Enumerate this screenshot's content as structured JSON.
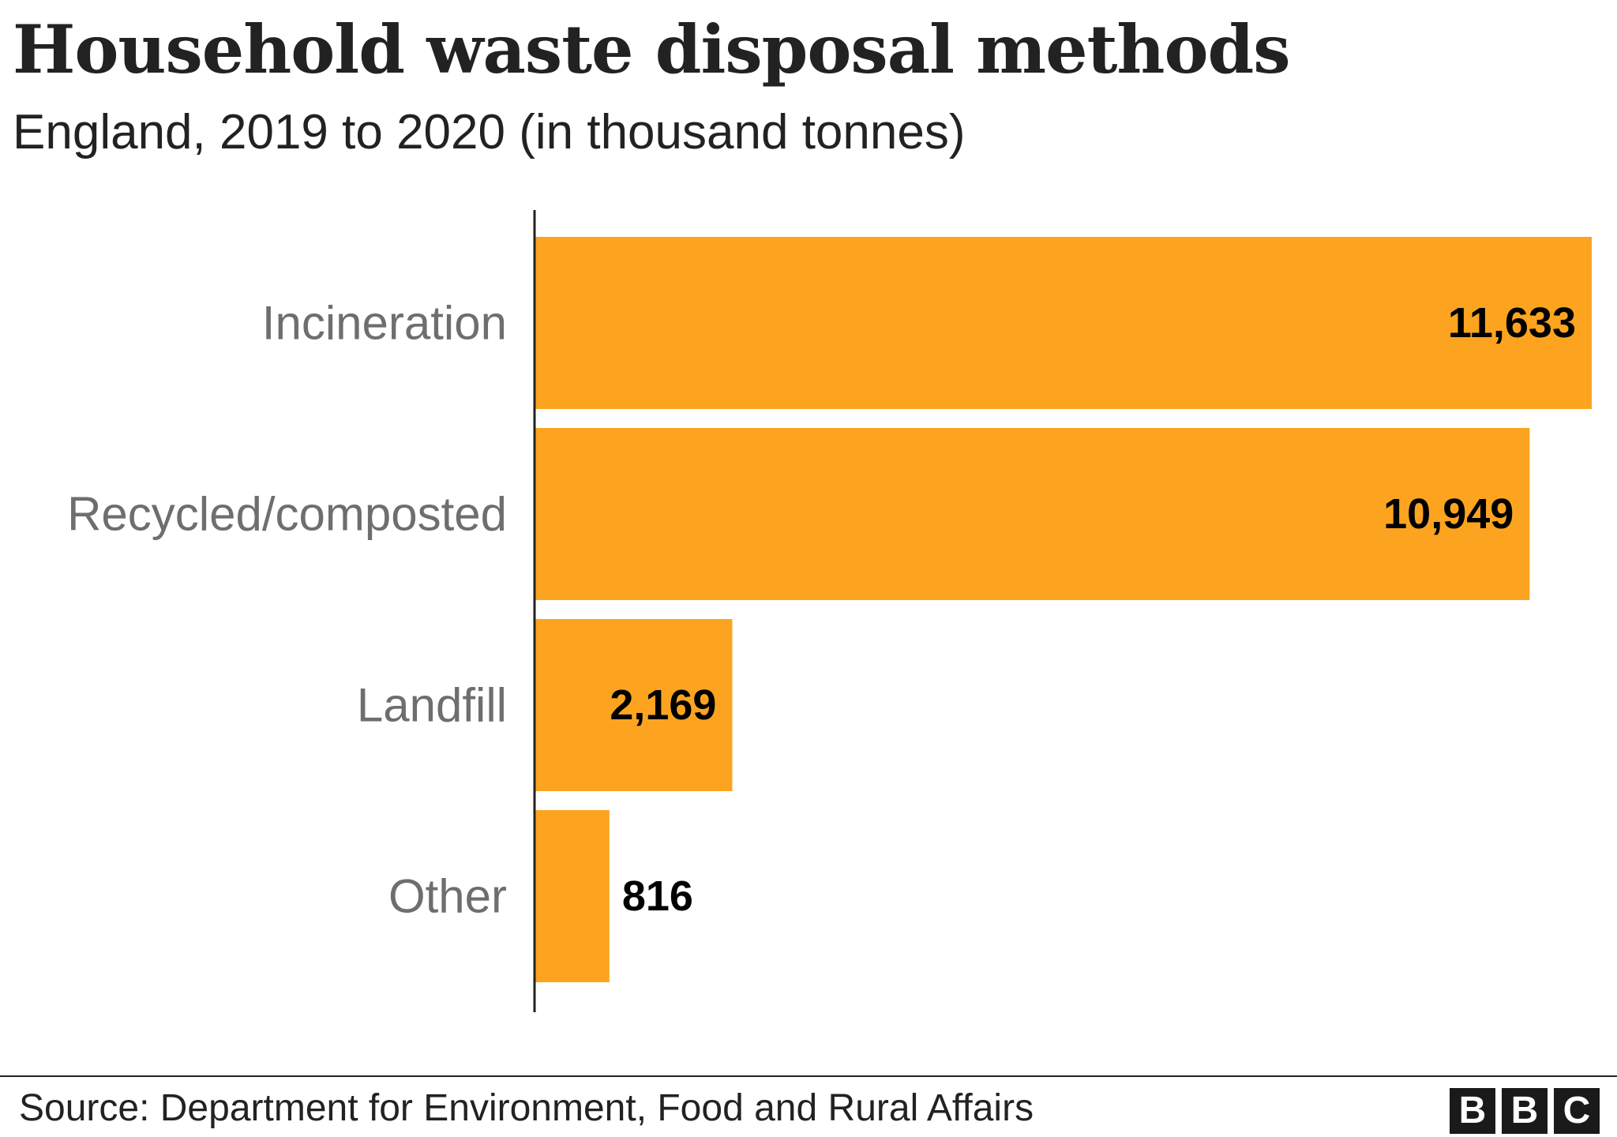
{
  "title": "Household waste disposal methods",
  "subtitle": "England, 2019 to 2020 (in thousand tonnes)",
  "source": "Source: Department for Environment, Food and Rural Affairs",
  "logo": {
    "letters": [
      "B",
      "B",
      "C"
    ]
  },
  "colors": {
    "bar": "#FCA41F",
    "label": "#6E6E6E",
    "value": "#000000",
    "axis": "#222222"
  },
  "chart_data": {
    "type": "bar",
    "orientation": "horizontal",
    "categories": [
      "Incineration",
      "Recycled/composted",
      "Landfill",
      "Other"
    ],
    "values": [
      11633,
      10949,
      2169,
      816
    ],
    "value_labels": [
      "11,633",
      "10,949",
      "2,169",
      "816"
    ],
    "title": "Household waste disposal methods",
    "subtitle": "England, 2019 to 2020 (in thousand tonnes)",
    "xlim": [
      0,
      11633
    ],
    "grid": false
  }
}
